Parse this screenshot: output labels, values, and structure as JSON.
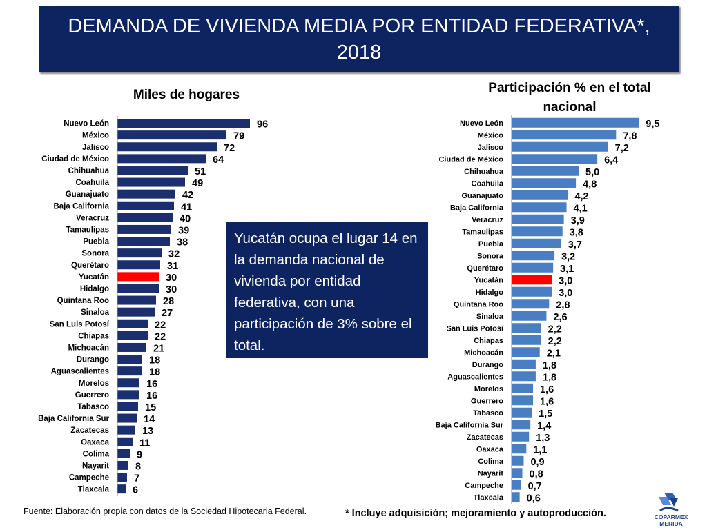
{
  "title": "DEMANDA DE VIVIENDA MEDIA POR ENTIDAD FEDERATIVA*, 2018",
  "callout": "Yucatán ocupa el lugar 14 en la demanda nacional de vivienda por entidad federativa, con una participación de 3% sobre el total.",
  "source": "Fuente: Elaboración propia con datos de la Sociedad Hipotecaria Federal.",
  "footnote": "* Incluye adquisición; mejoramiento y autoproducción.",
  "logo_text": "COPARMEX MERIDA",
  "colors": {
    "left_bar": "#1b2f6e",
    "right_bar": "#4a7ec2",
    "highlight": "#ff0000",
    "title_bg": "#0d2461"
  },
  "chart_data": [
    {
      "type": "bar",
      "orientation": "horizontal",
      "title": "Miles de hogares",
      "highlight": "Yucatán",
      "categories": [
        "Nuevo León",
        "México",
        "Jalisco",
        "Ciudad de México",
        "Chihuahua",
        "Coahuila",
        "Guanajuato",
        "Baja California",
        "Veracruz",
        "Tamaulipas",
        "Puebla",
        "Sonora",
        "Querétaro",
        "Yucatán",
        "Hidalgo",
        "Quintana Roo",
        "Sinaloa",
        "San Luis Potosí",
        "Chiapas",
        "Michoacán",
        "Durango",
        "Aguascalientes",
        "Morelos",
        "Guerrero",
        "Tabasco",
        "Baja California Sur",
        "Zacatecas",
        "Oaxaca",
        "Colima",
        "Nayarit",
        "Campeche",
        "Tlaxcala"
      ],
      "values": [
        96,
        79,
        72,
        64,
        51,
        49,
        42,
        41,
        40,
        39,
        38,
        32,
        31,
        30,
        30,
        28,
        27,
        22,
        22,
        21,
        18,
        18,
        16,
        16,
        15,
        14,
        13,
        11,
        9,
        8,
        7,
        6
      ],
      "labels": [
        "96",
        "79",
        "72",
        "64",
        "51",
        "49",
        "42",
        "41",
        "40",
        "39",
        "38",
        "32",
        "31",
        "30",
        "30",
        "28",
        "27",
        "22",
        "22",
        "21",
        "18",
        "18",
        "16",
        "16",
        "15",
        "14",
        "13",
        "11",
        "9",
        "8",
        "7",
        "6"
      ]
    },
    {
      "type": "bar",
      "orientation": "horizontal",
      "title": "Participación  % en el total nacional",
      "highlight": "Yucatán",
      "categories": [
        "Nuevo León",
        "México",
        "Jalisco",
        "Ciudad de México",
        "Chihuahua",
        "Coahuila",
        "Guanajuato",
        "Baja California",
        "Veracruz",
        "Tamaulipas",
        "Puebla",
        "Sonora",
        "Querétaro",
        "Yucatán",
        "Hidalgo",
        "Quintana Roo",
        "Sinaloa",
        "San Luis Potosí",
        "Chiapas",
        "Michoacán",
        "Durango",
        "Aguascalientes",
        "Morelos",
        "Guerrero",
        "Tabasco",
        "Baja California Sur",
        "Zacatecas",
        "Oaxaca",
        "Colima",
        "Nayarit",
        "Campeche",
        "Tlaxcala"
      ],
      "values": [
        9.5,
        7.8,
        7.2,
        6.4,
        5.0,
        4.8,
        4.2,
        4.1,
        3.9,
        3.8,
        3.7,
        3.2,
        3.1,
        3.0,
        3.0,
        2.8,
        2.6,
        2.2,
        2.2,
        2.1,
        1.8,
        1.8,
        1.6,
        1.6,
        1.5,
        1.4,
        1.3,
        1.1,
        0.9,
        0.8,
        0.7,
        0.6
      ],
      "labels": [
        "9,5",
        "7,8",
        "7,2",
        "6,4",
        "5,0",
        "4,8",
        "4,2",
        "4,1",
        "3,9",
        "3,8",
        "3,7",
        "3,2",
        "3,1",
        "3,0",
        "3,0",
        "2,8",
        "2,6",
        "2,2",
        "2,2",
        "2,1",
        "1,8",
        "1,8",
        "1,6",
        "1,6",
        "1,5",
        "1,4",
        "1,3",
        "1,1",
        "0,9",
        "0,8",
        "0,7",
        "0,6"
      ]
    }
  ]
}
